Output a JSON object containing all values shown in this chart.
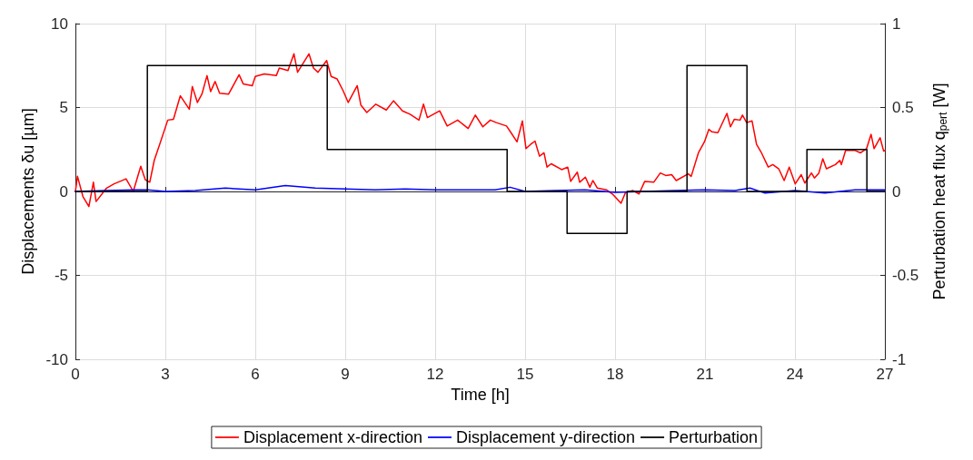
{
  "chart_data": {
    "type": "line",
    "xlabel": "Time [h]",
    "ylabel": "Displacements δu [µm]",
    "y2label": "Perturbation heat flux q$_{pert}$ [W]",
    "xlim": [
      0,
      27
    ],
    "xticks": [
      0,
      3,
      6,
      9,
      12,
      15,
      18,
      21,
      24,
      27
    ],
    "ylim": [
      -10,
      10
    ],
    "yticks": [
      -10,
      -5,
      0,
      5,
      10
    ],
    "y2lim": [
      -1,
      1
    ],
    "y2ticks": [
      -1,
      -0.5,
      0,
      0.5,
      1
    ],
    "grid": true,
    "legend": "bottom",
    "marker": "none",
    "line_style": "solid",
    "series": [
      {
        "name": "Displacement x-direction",
        "color": "#ff0000",
        "x": [
          0,
          0.07,
          0.25,
          0.45,
          0.6,
          0.69,
          1.04,
          1.29,
          1.69,
          1.93,
          2.18,
          2.33,
          2.48,
          2.63,
          2.83,
          3.08,
          3.27,
          3.5,
          3.8,
          3.9,
          4.07,
          4.22,
          4.39,
          4.51,
          4.66,
          4.81,
          5.11,
          5.46,
          5.6,
          5.9,
          6.0,
          6.3,
          6.7,
          6.8,
          7.09,
          7.29,
          7.41,
          7.79,
          7.94,
          8.09,
          8.38,
          8.53,
          8.73,
          8.93,
          9.1,
          9.4,
          9.52,
          9.72,
          10.02,
          10.37,
          10.61,
          10.91,
          11.16,
          11.46,
          11.61,
          11.74,
          12.15,
          12.4,
          12.75,
          13.1,
          13.34,
          13.59,
          13.84,
          14.04,
          14.38,
          14.53,
          14.73,
          14.91,
          15.03,
          15.18,
          15.33,
          15.48,
          15.63,
          15.73,
          15.87,
          16.22,
          16.42,
          16.52,
          16.74,
          16.82,
          17.01,
          17.16,
          17.26,
          17.41,
          17.71,
          17.91,
          18.2,
          18.35,
          18.6,
          18.8,
          18.99,
          19.29,
          19.51,
          19.69,
          19.89,
          20.04,
          20.44,
          20.54,
          20.78,
          20.98,
          21.13,
          21.23,
          21.43,
          21.73,
          21.85,
          21.98,
          22.17,
          22.25,
          22.39,
          22.57,
          22.72,
          22.87,
          23.11,
          23.26,
          23.46,
          23.64,
          23.81,
          24.01,
          24.21,
          24.33,
          24.55,
          24.65,
          24.8,
          24.93,
          25.05,
          25.35,
          25.5,
          25.55,
          25.69,
          25.99,
          26.19,
          26.39,
          26.54,
          26.64,
          26.84,
          26.96,
          27
        ],
        "values": [
          0,
          0.9,
          -0.3,
          -0.9,
          0.55,
          -0.6,
          0.2,
          0.45,
          0.75,
          0,
          1.5,
          0.7,
          0.55,
          1.85,
          2.9,
          4.25,
          4.3,
          5.7,
          4.9,
          6.25,
          5.3,
          5.8,
          6.9,
          5.95,
          6.55,
          5.85,
          5.8,
          6.95,
          6.4,
          6.3,
          6.85,
          7.0,
          6.9,
          7.35,
          7.2,
          8.2,
          7.1,
          8.2,
          7.35,
          7.1,
          7.8,
          6.85,
          6.7,
          6.0,
          5.3,
          6.3,
          5.15,
          4.7,
          5.2,
          4.85,
          5.4,
          4.8,
          4.6,
          4.25,
          5.2,
          4.4,
          4.8,
          3.9,
          4.25,
          3.75,
          4.55,
          3.85,
          4.25,
          4.1,
          3.9,
          3.5,
          2.95,
          4.2,
          2.55,
          2.8,
          3.0,
          2.1,
          2.3,
          1.45,
          1.65,
          1.3,
          1.45,
          0.6,
          1.15,
          0.55,
          0.85,
          0.25,
          0.65,
          0.2,
          0.1,
          -0.15,
          -0.7,
          -0.05,
          0.05,
          -0.15,
          0.6,
          0.55,
          1.1,
          0.95,
          1.0,
          0.65,
          1.05,
          0.9,
          2.3,
          2.95,
          3.7,
          3.55,
          3.5,
          4.65,
          3.85,
          4.3,
          4.25,
          4.55,
          4.1,
          4.2,
          2.8,
          2.35,
          1.45,
          1.6,
          1.35,
          0.65,
          1.45,
          0.45,
          1.0,
          0.5,
          1.1,
          0.8,
          1.1,
          1.95,
          1.35,
          1.6,
          1.85,
          1.6,
          2.45,
          2.45,
          2.3,
          2.55,
          3.4,
          2.55,
          3.2,
          2.4,
          2.45
        ]
      },
      {
        "name": "Displacement y-direction",
        "color": "#0000ff",
        "x": [
          0,
          1,
          2,
          2.4,
          3,
          4,
          5,
          6,
          7,
          8,
          9,
          10,
          11,
          12,
          13,
          14,
          14.5,
          15,
          16,
          17,
          18,
          19,
          20,
          21,
          22,
          22.5,
          23,
          24,
          25,
          26,
          27
        ],
        "values": [
          0,
          0.05,
          0.1,
          0.1,
          0,
          0.05,
          0.2,
          0.1,
          0.35,
          0.2,
          0.15,
          0.1,
          0.15,
          0.1,
          0.1,
          0.1,
          0.25,
          0,
          0.05,
          0.1,
          -0.05,
          0,
          0.05,
          0.1,
          0.05,
          0.2,
          -0.1,
          0.05,
          -0.1,
          0.1,
          0.1
        ]
      },
      {
        "name": "Perturbation",
        "color": "#000000",
        "type": "step",
        "axis": "y2",
        "x": [
          0,
          2.4,
          8.4,
          14.4,
          16.4,
          18.4,
          20.4,
          22.4,
          24.4,
          26.4,
          27
        ],
        "values": [
          0,
          0.75,
          0.25,
          0,
          -0.25,
          0,
          0.75,
          0,
          0.25,
          0,
          0
        ]
      }
    ]
  }
}
